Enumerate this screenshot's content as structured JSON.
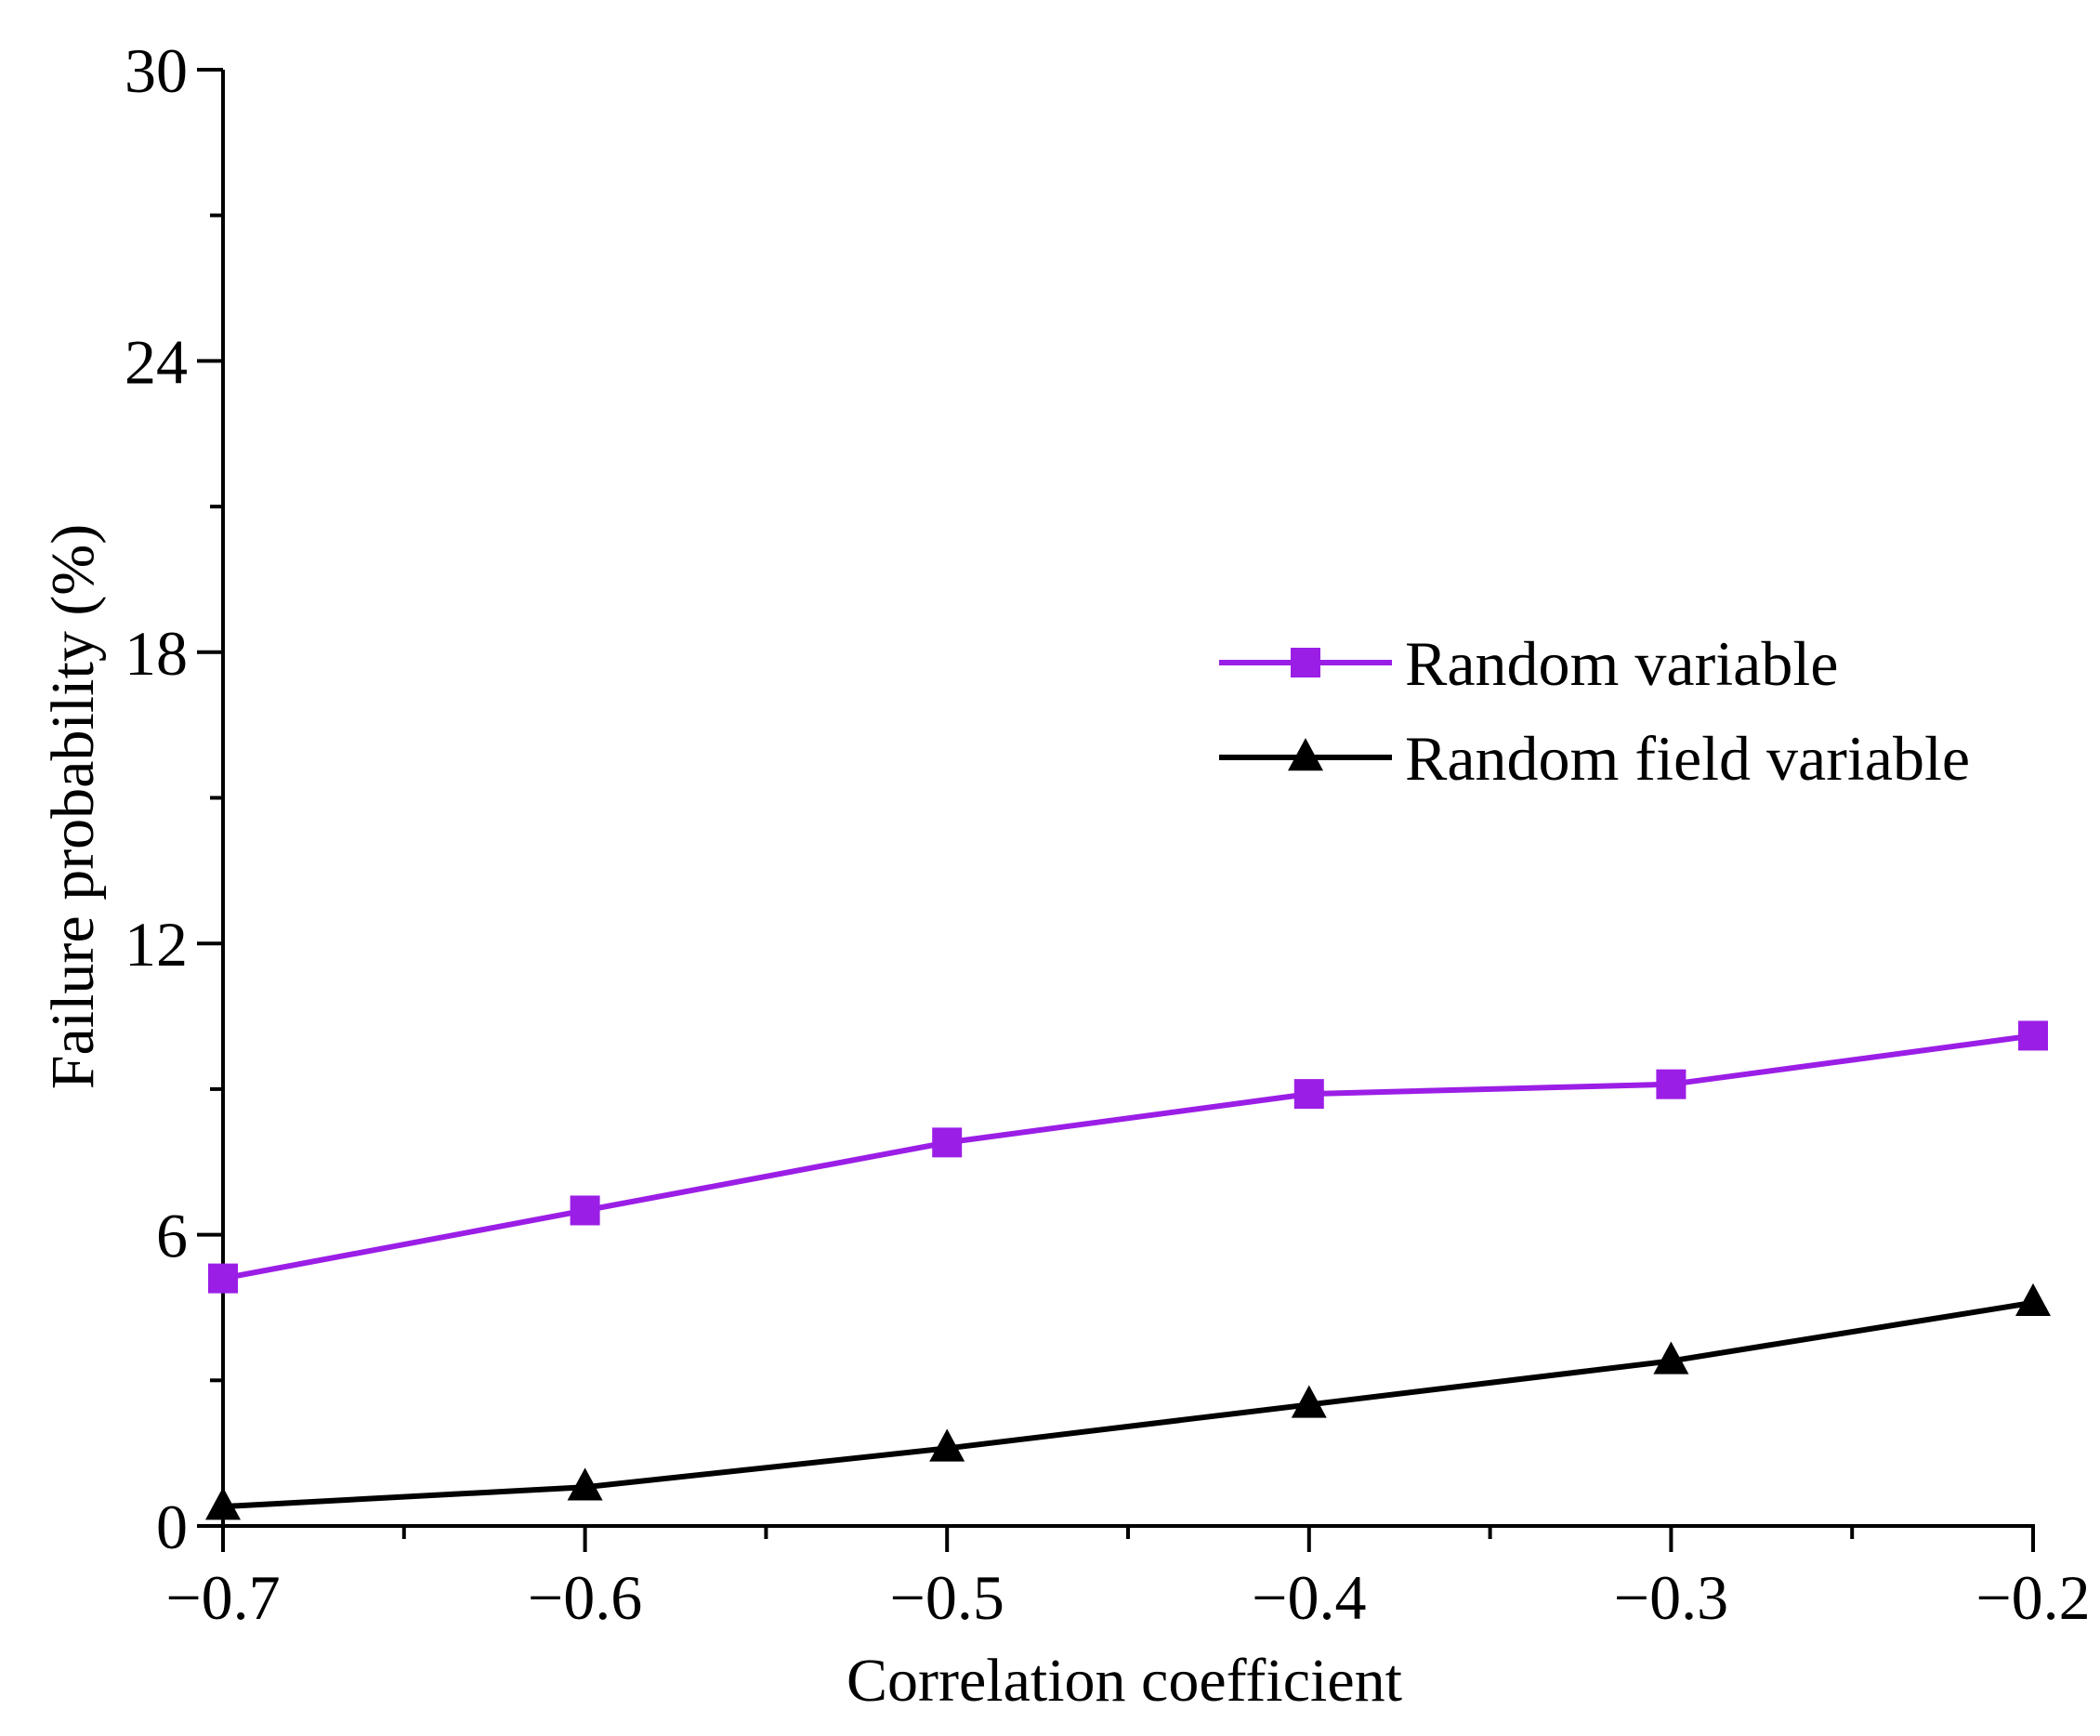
{
  "chart_data": {
    "type": "line",
    "title": "",
    "xlabel": "Correlation coefficient",
    "ylabel": "Failure probability (%)",
    "x": [
      -0.7,
      -0.6,
      -0.5,
      -0.4,
      -0.3,
      -0.2
    ],
    "xlim": [
      -0.7,
      -0.2
    ],
    "ylim": [
      0,
      30
    ],
    "xticks": [
      -0.7,
      -0.6,
      -0.5,
      -0.4,
      -0.3,
      -0.2
    ],
    "xtick_labels": [
      "−0.7",
      "−0.6",
      "−0.5",
      "−0.4",
      "−0.3",
      "−0.2"
    ],
    "yticks": [
      0,
      6,
      12,
      18,
      24,
      30
    ],
    "ytick_labels": [
      "0",
      "6",
      "12",
      "18",
      "24",
      "30"
    ],
    "grid": false,
    "legend_position": "right",
    "series": [
      {
        "name": "Random variable",
        "marker": "square",
        "color": "#9b1ee6",
        "values": [
          5.1,
          6.5,
          7.9,
          8.9,
          9.1,
          10.1
        ]
      },
      {
        "name": "Random field variable",
        "marker": "triangle",
        "color": "#000000",
        "values": [
          0.4,
          0.8,
          1.6,
          2.5,
          3.4,
          4.6
        ]
      }
    ]
  }
}
